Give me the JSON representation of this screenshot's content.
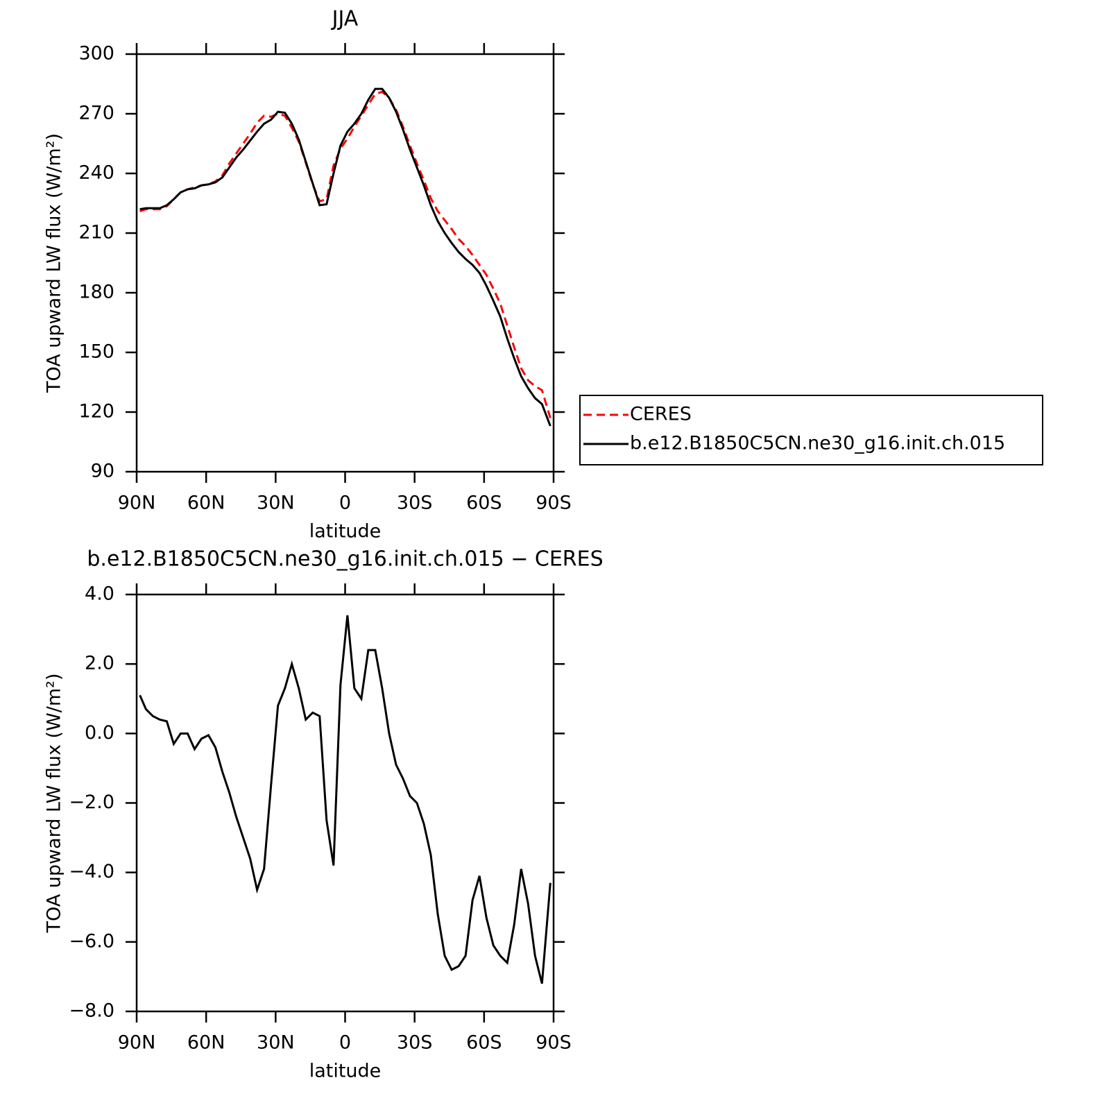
{
  "chart_data": [
    {
      "type": "line",
      "title": "JJA",
      "xlabel": "latitude",
      "ylabel": "TOA upward LW flux (W/m²)",
      "xlim": [
        90,
        -90
      ],
      "ylim": [
        90,
        300
      ],
      "xticks": [
        {
          "value": 90,
          "label": "90N"
        },
        {
          "value": 60,
          "label": "60N"
        },
        {
          "value": 30,
          "label": "30N"
        },
        0,
        {
          "value": -30,
          "label": "30S"
        },
        {
          "value": -60,
          "label": "60S"
        },
        {
          "value": -90,
          "label": "90S"
        }
      ],
      "yticks": [
        90,
        120,
        150,
        180,
        210,
        240,
        270,
        300
      ],
      "legend": "right",
      "x": [
        88.6,
        86,
        83,
        80,
        77,
        74,
        71,
        68,
        65,
        62,
        59,
        56,
        53,
        50,
        47,
        44,
        41,
        38,
        35,
        32,
        29,
        26,
        23,
        20,
        17,
        14,
        11,
        8,
        5,
        2,
        -1,
        -4,
        -7,
        -10,
        -13,
        -16,
        -19,
        -22,
        -25,
        -28,
        -31,
        -34,
        -37,
        -40,
        -43,
        -46,
        -49,
        -52,
        -55,
        -58,
        -61,
        -64,
        -67,
        -70,
        -73,
        -76,
        -79,
        -82,
        -85,
        -88.6
      ],
      "series": [
        {
          "name": "CERES",
          "color": "#ff0000",
          "dashed": true,
          "values": [
            221,
            222,
            222,
            222,
            223.5,
            227,
            230.5,
            232,
            233,
            234,
            234.5,
            236,
            239,
            245,
            250,
            255,
            260,
            265.5,
            269,
            268.5,
            270,
            269,
            263,
            256,
            245.5,
            234.5,
            226,
            227,
            244,
            252.5,
            257.5,
            263.5,
            269,
            274.5,
            280,
            281,
            278,
            272,
            263.5,
            254,
            245,
            236.5,
            227.5,
            221,
            216.5,
            212,
            207,
            203.5,
            199,
            194,
            189,
            182,
            174.5,
            163.5,
            152.5,
            142,
            136,
            133,
            131,
            117
          ]
        },
        {
          "name": "b.e12.B1850C5CN.ne30_g16.init.ch.015",
          "color": "#000000",
          "dashed": false,
          "values": [
            222,
            222.5,
            222.5,
            222.5,
            224,
            227,
            230.5,
            232,
            232.5,
            234,
            234.5,
            235.5,
            238,
            243,
            248,
            252,
            256.5,
            261,
            265,
            267,
            271,
            270.5,
            265,
            257,
            246,
            235,
            224,
            224.5,
            240,
            254,
            261,
            265,
            270,
            277,
            282.5,
            282.5,
            278,
            271,
            262,
            252,
            243,
            234,
            224,
            216,
            210,
            205,
            200.5,
            197,
            194,
            190,
            183.5,
            176,
            168,
            157,
            147,
            138,
            132,
            127,
            124,
            113
          ]
        }
      ]
    },
    {
      "type": "line",
      "title": "b.e12.B1850C5CN.ne30_g16.init.ch.015 − CERES",
      "xlabel": "latitude",
      "ylabel": "TOA upward LW flux (W/m²)",
      "xlim": [
        90,
        -90
      ],
      "ylim": [
        -8,
        4
      ],
      "xticks": [
        {
          "value": 90,
          "label": "90N"
        },
        {
          "value": 60,
          "label": "60N"
        },
        {
          "value": 30,
          "label": "30N"
        },
        0,
        {
          "value": -30,
          "label": "30S"
        },
        {
          "value": -60,
          "label": "60S"
        },
        {
          "value": -90,
          "label": "90S"
        }
      ],
      "yticks": [
        {
          "value": -8,
          "label": "−8.0"
        },
        {
          "value": -6,
          "label": "−6.0"
        },
        {
          "value": -4,
          "label": "−4.0"
        },
        {
          "value": -2,
          "label": "−2.0"
        },
        {
          "value": 0,
          "label": "0.0"
        },
        {
          "value": 2,
          "label": "2.0"
        },
        {
          "value": 4,
          "label": "4.0"
        }
      ],
      "x": [
        88.6,
        86,
        83,
        80,
        77,
        74,
        71,
        68,
        65,
        62,
        59,
        56,
        53,
        50,
        47,
        44,
        41,
        38,
        35,
        32,
        29,
        26,
        23,
        20,
        17,
        14,
        11,
        8,
        5,
        2,
        -1,
        -4,
        -7,
        -10,
        -13,
        -16,
        -19,
        -22,
        -25,
        -28,
        -31,
        -34,
        -37,
        -40,
        -43,
        -46,
        -49,
        -52,
        -55,
        -58,
        -61,
        -64,
        -67,
        -70,
        -73,
        -76,
        -79,
        -82,
        -85,
        -88.6
      ],
      "series": [
        {
          "color": "#000000",
          "dashed": false,
          "values": [
            1.1,
            0.7,
            0.5,
            0.4,
            0.35,
            -0.3,
            0.0,
            0.0,
            -0.45,
            -0.15,
            -0.05,
            -0.4,
            -1.1,
            -1.7,
            -2.4,
            -3.0,
            -3.6,
            -4.5,
            -3.9,
            -1.5,
            0.8,
            1.3,
            2.0,
            1.3,
            0.4,
            0.6,
            0.5,
            -2.5,
            -3.8,
            1.4,
            3.4,
            1.3,
            1.0,
            2.4,
            2.4,
            1.3,
            0.0,
            -0.9,
            -1.3,
            -1.8,
            -2.0,
            -2.6,
            -3.5,
            -5.2,
            -6.4,
            -6.8,
            -6.7,
            -6.4,
            -4.8,
            -4.1,
            -5.3,
            -6.1,
            -6.4,
            -6.6,
            -5.5,
            -3.9,
            -4.9,
            -6.4,
            -7.2,
            -4.3
          ]
        }
      ]
    }
  ]
}
